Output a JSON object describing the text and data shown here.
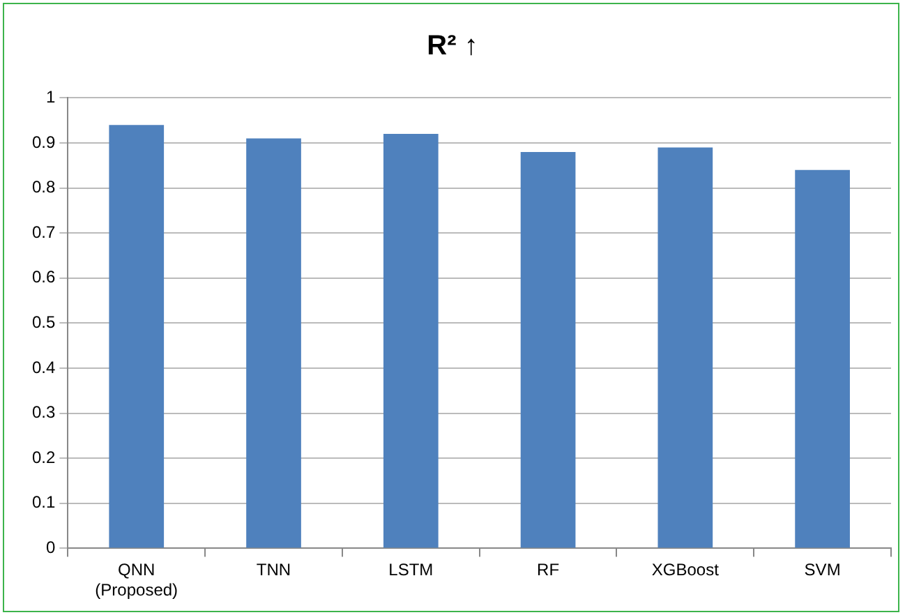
{
  "chart_data": {
    "type": "bar",
    "title": "R² ↑",
    "categories": [
      "QNN (Proposed)",
      "TNN",
      "LSTM",
      "RF",
      "XGBoost",
      "SVM"
    ],
    "values": [
      0.94,
      0.91,
      0.92,
      0.88,
      0.89,
      0.84
    ],
    "color": "#4f81bd",
    "ylim": [
      0,
      1
    ],
    "yticks": [
      0,
      0.1,
      0.2,
      0.3,
      0.4,
      0.5,
      0.6,
      0.7,
      0.8,
      0.9,
      1
    ],
    "grid": "y"
  }
}
